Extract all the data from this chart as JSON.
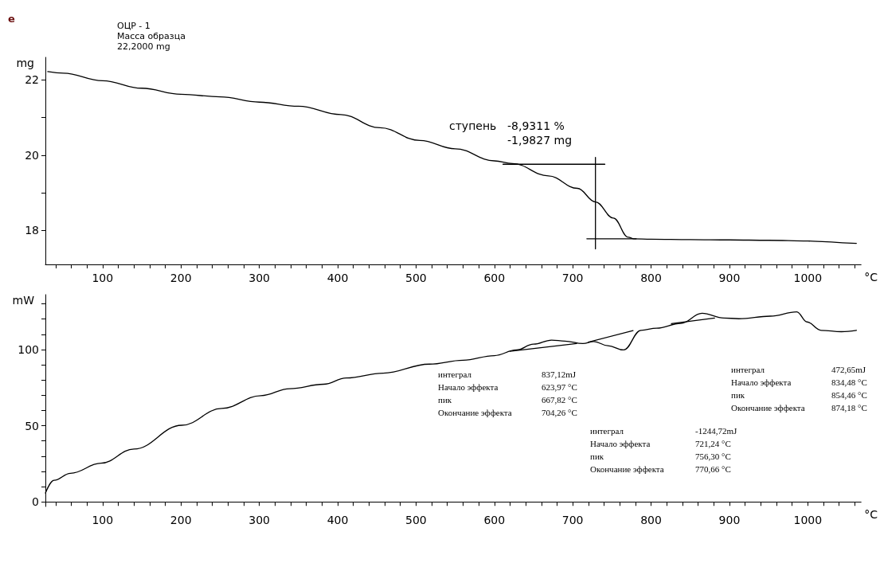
{
  "chart_data": [
    {
      "type": "line",
      "xlabel": "°C",
      "ylabel": "mg",
      "xlim": [
        27,
        1068
      ],
      "ylim": [
        17.1,
        22.6
      ],
      "xticks": [
        {
          "value": 40,
          "label": null
        },
        {
          "value": 60,
          "label": null
        },
        {
          "value": 80,
          "label": null
        },
        100,
        {
          "value": 120,
          "label": null
        },
        {
          "value": 140,
          "label": null
        },
        {
          "value": 160,
          "label": null
        },
        {
          "value": 180,
          "label": null
        },
        200,
        {
          "value": 220,
          "label": null
        },
        {
          "value": 240,
          "label": null
        },
        {
          "value": 260,
          "label": null
        },
        {
          "value": 280,
          "label": null
        },
        300,
        {
          "value": 320,
          "label": null
        },
        {
          "value": 340,
          "label": null
        },
        {
          "value": 360,
          "label": null
        },
        {
          "value": 380,
          "label": null
        },
        400,
        {
          "value": 420,
          "label": null
        },
        {
          "value": 440,
          "label": null
        },
        {
          "value": 460,
          "label": null
        },
        {
          "value": 480,
          "label": null
        },
        500,
        {
          "value": 520,
          "label": null
        },
        {
          "value": 540,
          "label": null
        },
        {
          "value": 560,
          "label": null
        },
        {
          "value": 580,
          "label": null
        },
        600,
        {
          "value": 620,
          "label": null
        },
        {
          "value": 640,
          "label": null
        },
        {
          "value": 660,
          "label": null
        },
        {
          "value": 680,
          "label": null
        },
        700,
        {
          "value": 720,
          "label": null
        },
        {
          "value": 740,
          "label": null
        },
        {
          "value": 760,
          "label": null
        },
        {
          "value": 780,
          "label": null
        },
        800,
        {
          "value": 820,
          "label": null
        },
        {
          "value": 840,
          "label": null
        },
        {
          "value": 860,
          "label": null
        },
        {
          "value": 880,
          "label": null
        },
        900,
        {
          "value": 920,
          "label": null
        },
        {
          "value": 940,
          "label": null
        },
        {
          "value": 960,
          "label": null
        },
        {
          "value": 980,
          "label": null
        },
        1000,
        {
          "value": 1020,
          "label": null
        },
        {
          "value": 1040,
          "label": null
        },
        {
          "value": 1060,
          "label": null
        }
      ],
      "yticks": [
        18,
        {
          "value": 19,
          "label": null
        },
        20,
        {
          "value": 21,
          "label": null
        },
        22
      ],
      "grid": false,
      "marker": "none",
      "line_style": "solid",
      "series": [
        {
          "color": "#000000",
          "x": [
            30,
            50,
            100,
            150,
            200,
            250,
            300,
            350,
            404,
            454,
            505,
            550,
            600,
            623,
            669,
            706,
            729,
            752,
            771,
            778,
            800,
            850,
            900,
            950,
            1000,
            1024,
            1050,
            1062
          ],
          "values": [
            22.22,
            22.18,
            21.98,
            21.78,
            21.62,
            21.55,
            21.41,
            21.3,
            21.08,
            20.73,
            20.39,
            20.17,
            19.85,
            19.78,
            19.45,
            19.12,
            18.76,
            18.33,
            17.82,
            17.78,
            17.77,
            17.76,
            17.75,
            17.74,
            17.72,
            17.7,
            17.67,
            17.66
          ]
        },
        {
          "color": "#000000",
          "x": [
            611,
            741
          ],
          "values": [
            19.76,
            19.76
          ]
        },
        {
          "color": "#000000",
          "x": [
            729,
            729
          ],
          "values": [
            19.94,
            17.51
          ]
        },
        {
          "color": "#000000",
          "x": [
            718,
            781
          ],
          "values": [
            17.78,
            17.78
          ]
        }
      ],
      "annotations": [
        "e",
        "ОЦР - 1",
        "Масса образца",
        "22,2000 mg",
        "ступень",
        "-8,9311 %",
        "-1,9827 mg"
      ]
    },
    {
      "type": "line",
      "xlabel": "°C",
      "ylabel": "mW",
      "xlim": [
        27,
        1068
      ],
      "ylim": [
        -3,
        136
      ],
      "xticks": [
        {
          "value": 40,
          "label": null
        },
        {
          "value": 60,
          "label": null
        },
        {
          "value": 80,
          "label": null
        },
        100,
        {
          "value": 120,
          "label": null
        },
        {
          "value": 140,
          "label": null
        },
        {
          "value": 160,
          "label": null
        },
        {
          "value": 180,
          "label": null
        },
        200,
        {
          "value": 220,
          "label": null
        },
        {
          "value": 240,
          "label": null
        },
        {
          "value": 260,
          "label": null
        },
        {
          "value": 280,
          "label": null
        },
        300,
        {
          "value": 320,
          "label": null
        },
        {
          "value": 340,
          "label": null
        },
        {
          "value": 360,
          "label": null
        },
        {
          "value": 380,
          "label": null
        },
        400,
        {
          "value": 420,
          "label": null
        },
        {
          "value": 440,
          "label": null
        },
        {
          "value": 460,
          "label": null
        },
        {
          "value": 480,
          "label": null
        },
        500,
        {
          "value": 520,
          "label": null
        },
        {
          "value": 540,
          "label": null
        },
        {
          "value": 560,
          "label": null
        },
        {
          "value": 580,
          "label": null
        },
        600,
        {
          "value": 620,
          "label": null
        },
        {
          "value": 640,
          "label": null
        },
        {
          "value": 660,
          "label": null
        },
        {
          "value": 680,
          "label": null
        },
        700,
        {
          "value": 720,
          "label": null
        },
        {
          "value": 740,
          "label": null
        },
        {
          "value": 760,
          "label": null
        },
        {
          "value": 780,
          "label": null
        },
        800,
        {
          "value": 820,
          "label": null
        },
        {
          "value": 840,
          "label": null
        },
        {
          "value": 860,
          "label": null
        },
        {
          "value": 880,
          "label": null
        },
        900,
        {
          "value": 920,
          "label": null
        },
        {
          "value": 940,
          "label": null
        },
        {
          "value": 960,
          "label": null
        },
        {
          "value": 980,
          "label": null
        },
        1000,
        {
          "value": 1020,
          "label": null
        },
        {
          "value": 1040,
          "label": null
        },
        {
          "value": 1060,
          "label": null
        }
      ],
      "yticks": [
        0,
        {
          "value": 10,
          "label": null
        },
        {
          "value": 20,
          "label": null
        },
        {
          "value": 30,
          "label": null
        },
        {
          "value": 40,
          "label": null
        },
        50,
        {
          "value": 60,
          "label": null
        },
        {
          "value": 70,
          "label": null
        },
        {
          "value": 80,
          "label": null
        },
        {
          "value": 90,
          "label": null
        },
        100,
        {
          "value": 110,
          "label": null
        },
        {
          "value": 120,
          "label": null
        },
        {
          "value": 130,
          "label": null
        }
      ],
      "grid": false,
      "marker": "none",
      "line_style": "solid",
      "series": [
        {
          "color": "#000000",
          "x": [
            27,
            38,
            59,
            98,
            140,
            201,
            252,
            302,
            339,
            382,
            411,
            458,
            517,
            560,
            600,
            628,
            650,
            673,
            690,
            713,
            727,
            745,
            765,
            787,
            807,
            838,
            865,
            893,
            912,
            952,
            986,
            999,
            1017,
            1043,
            1062
          ],
          "values": [
            5.8,
            14.2,
            18.8,
            25.4,
            34.7,
            50.3,
            61.3,
            69.7,
            74.3,
            77.2,
            81.3,
            84.5,
            90.4,
            93,
            96,
            99.7,
            103.5,
            106.2,
            105.5,
            103.9,
            105.2,
            102.5,
            99.7,
            112.6,
            114,
            117.2,
            123.8,
            120.7,
            120.2,
            121.9,
            124.7,
            118.1,
            112.6,
            111.7,
            112.6
          ]
        },
        {
          "color": "#000000",
          "x": [
            620,
            705
          ],
          "values": [
            98.8,
            103.9
          ]
        },
        {
          "color": "#000000",
          "x": [
            720,
            777
          ],
          "values": [
            104.8,
            112.4
          ]
        },
        {
          "color": "#000000",
          "x": [
            826,
            881
          ],
          "values": [
            117,
            120.6
          ]
        }
      ],
      "annotations": [
        "интеграл",
        "837,12mJ",
        "Начало эффекта",
        "623,97 °C",
        "пик",
        "667,82 °C",
        "Окончание эффекта",
        "704,26 °C",
        "интеграл",
        "-1244,72mJ",
        "Начало эффекта",
        "721,24 °C",
        "пик",
        "756,30 °C",
        "Окончание эффекта",
        "770,66 °C",
        "интеграл",
        "472,65mJ",
        "Начало эффекта",
        "834,48 °C",
        "пик",
        "854,46 °C",
        "Окончание эффекта",
        "874,18 °C"
      ]
    }
  ]
}
